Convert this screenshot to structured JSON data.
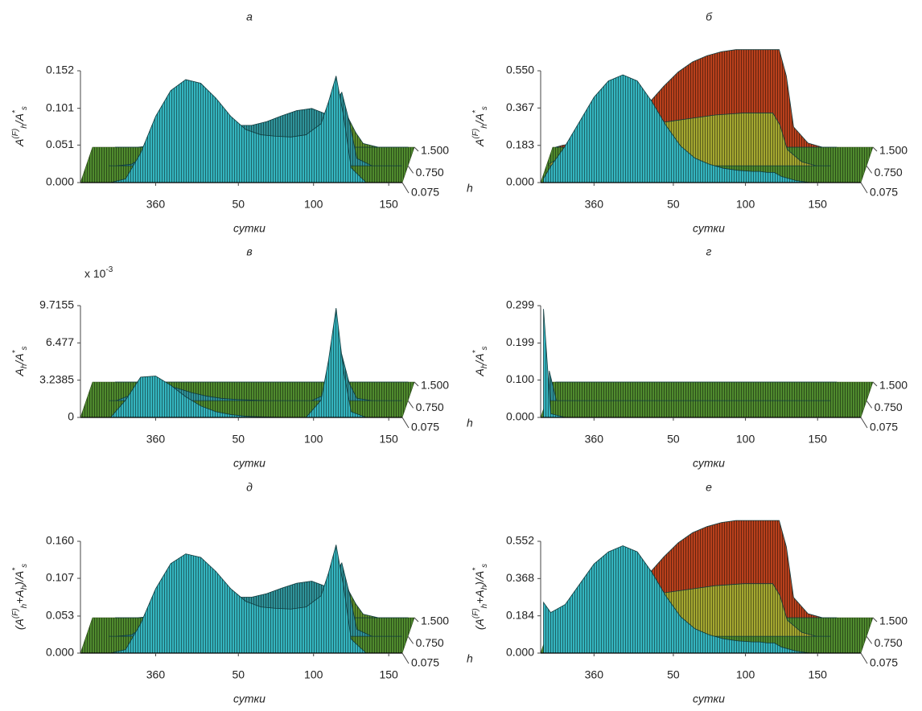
{
  "chart_data": [
    {
      "type": "surface",
      "title": "а",
      "ylabel": [
        {
          "text": "A"
        },
        {
          "text": "(F)",
          "pos": "sup"
        },
        {
          "text": "h",
          "pos": "sub"
        },
        {
          "text": "/A"
        },
        {
          "text": "*",
          "pos": "sup"
        },
        {
          "text": "s",
          "pos": "sub"
        }
      ],
      "xlabel": "сутки",
      "zlabel": "h",
      "x": [
        325,
        330,
        340,
        350,
        360,
        370,
        380,
        390,
        400,
        410,
        420,
        430,
        440,
        450,
        460,
        470,
        475,
        480,
        485,
        490,
        500,
        510,
        520
      ],
      "xlim": [
        310,
        524
      ],
      "xticks": [
        360,
        {
          "value": 415,
          "label": "50"
        },
        {
          "value": 465,
          "label": "100"
        },
        {
          "value": 515,
          "label": "150"
        }
      ],
      "ylim": [
        0,
        0.152
      ],
      "yticks": [
        {
          "value": 0,
          "label": "0.000"
        },
        0.051,
        0.101,
        0.152
      ],
      "zlim": [
        0.075,
        1.5
      ],
      "zticks": [
        0.075,
        {
          "value": 0.75,
          "label": "0.750"
        },
        {
          "value": 1.5,
          "label": "1.500"
        }
      ],
      "floor_color": "#4f8a2e",
      "series": [
        {
          "h": 1.5,
          "color": "#5e8f2c",
          "values": [
            0,
            0,
            0,
            0.002,
            0.005,
            0.008,
            0.01,
            0.012,
            0.013,
            0.014,
            0.016,
            0.02,
            0.025,
            0.03,
            0.032,
            0.03,
            0.035,
            0.04,
            0.02,
            0.005,
            0,
            0,
            0
          ]
        },
        {
          "h": 0.75,
          "color": "#2f939a",
          "values": [
            0,
            0,
            0.002,
            0.015,
            0.035,
            0.05,
            0.058,
            0.06,
            0.058,
            0.055,
            0.055,
            0.06,
            0.068,
            0.075,
            0.078,
            0.07,
            0.085,
            0.1,
            0.06,
            0.01,
            0,
            0,
            0
          ]
        },
        {
          "h": 0.075,
          "color": "#34b4be",
          "values": [
            0,
            0,
            0.005,
            0.04,
            0.09,
            0.125,
            0.14,
            0.135,
            0.115,
            0.09,
            0.072,
            0.065,
            0.063,
            0.062,
            0.065,
            0.08,
            0.11,
            0.145,
            0.09,
            0.02,
            0,
            0,
            0
          ]
        }
      ]
    },
    {
      "type": "surface",
      "title": "б",
      "ylabel": [
        {
          "text": "A"
        },
        {
          "text": "(F)",
          "pos": "sup"
        },
        {
          "text": "h",
          "pos": "sub"
        },
        {
          "text": "/A"
        },
        {
          "text": "*",
          "pos": "sup"
        },
        {
          "text": "s",
          "pos": "sub"
        }
      ],
      "xlabel": "сутки",
      "zlabel": "h",
      "x": [
        325,
        330,
        340,
        350,
        360,
        370,
        380,
        390,
        400,
        410,
        420,
        430,
        440,
        450,
        460,
        470,
        475,
        480,
        485,
        490,
        500,
        510,
        520
      ],
      "xlim": [
        323,
        545
      ],
      "xticks": [
        360,
        {
          "value": 415,
          "label": "50"
        },
        {
          "value": 465,
          "label": "100"
        },
        {
          "value": 515,
          "label": "150"
        }
      ],
      "ylim": [
        0,
        0.55
      ],
      "yticks": [
        {
          "value": 0,
          "label": "0.000"
        },
        0.183,
        0.367,
        {
          "value": 0.55,
          "label": "0.550"
        }
      ],
      "zlim": [
        0.075,
        1.5
      ],
      "zticks": [
        0.075,
        {
          "value": 0.75,
          "label": "0.750"
        },
        {
          "value": 1.5,
          "label": "1.500"
        }
      ],
      "floor_color": "#4f8a2e",
      "series": [
        {
          "h": 1.5,
          "color": "#b8401c",
          "values": [
            0,
            0.01,
            0.02,
            0.04,
            0.07,
            0.1,
            0.15,
            0.22,
            0.3,
            0.37,
            0.42,
            0.45,
            0.47,
            0.48,
            0.48,
            0.48,
            0.48,
            0.48,
            0.35,
            0.1,
            0.02,
            0,
            0
          ]
        },
        {
          "h": 0.75,
          "color": "#a3a630",
          "values": [
            0.01,
            0.03,
            0.06,
            0.1,
            0.14,
            0.17,
            0.19,
            0.2,
            0.21,
            0.22,
            0.23,
            0.24,
            0.25,
            0.255,
            0.26,
            0.26,
            0.26,
            0.26,
            0.2,
            0.08,
            0.02,
            0,
            0
          ]
        },
        {
          "h": 0.075,
          "color": "#34b4be",
          "values": [
            0.02,
            0.08,
            0.18,
            0.3,
            0.42,
            0.5,
            0.53,
            0.5,
            0.4,
            0.28,
            0.18,
            0.12,
            0.09,
            0.07,
            0.06,
            0.055,
            0.055,
            0.05,
            0.05,
            0.03,
            0.01,
            0,
            0
          ]
        }
      ]
    },
    {
      "type": "surface",
      "title": "в",
      "multiplier": {
        "text": "x 10",
        "exponent": "-3"
      },
      "ylabel": [
        {
          "text": "A"
        },
        {
          "text": "h",
          "pos": "sub"
        },
        {
          "text": "/A"
        },
        {
          "text": "*",
          "pos": "sup"
        },
        {
          "text": "s",
          "pos": "sub"
        }
      ],
      "xlabel": "сутки",
      "zlabel": "h",
      "x": [
        325,
        330,
        340,
        350,
        360,
        370,
        380,
        390,
        400,
        410,
        420,
        430,
        440,
        450,
        460,
        470,
        475,
        480,
        485,
        490,
        500,
        510,
        520
      ],
      "xlim": [
        310,
        524
      ],
      "xticks": [
        360,
        {
          "value": 415,
          "label": "50"
        },
        {
          "value": 465,
          "label": "100"
        },
        {
          "value": 515,
          "label": "150"
        }
      ],
      "ylim": [
        0,
        9.7155
      ],
      "yticks": [
        0,
        3.2385,
        6.477,
        9.7155
      ],
      "zlim": [
        0.075,
        1.5
      ],
      "zticks": [
        0.075,
        {
          "value": 0.75,
          "label": "0.750"
        },
        {
          "value": 1.5,
          "label": "1.500"
        }
      ],
      "floor_color": "#4f8a2e",
      "series": [
        {
          "h": 1.5,
          "color": "#5e8f2c",
          "values": [
            0,
            0,
            0,
            0,
            0,
            0,
            0,
            0,
            0,
            0,
            0,
            0,
            0,
            0,
            0,
            0,
            0,
            0,
            0,
            0,
            0,
            0,
            0
          ]
        },
        {
          "h": 0.75,
          "color": "#2f939a",
          "values": [
            0,
            0,
            0.5,
            1.2,
            1.4,
            1.1,
            0.7,
            0.4,
            0.2,
            0.1,
            0.05,
            0,
            0,
            0,
            0,
            0.6,
            2,
            4,
            1.5,
            0.2,
            0,
            0,
            0
          ]
        },
        {
          "h": 0.075,
          "color": "#34b4be",
          "values": [
            0,
            0,
            1.5,
            3.5,
            3.6,
            2.8,
            1.8,
            1,
            0.5,
            0.25,
            0.1,
            0.05,
            0.02,
            0,
            0,
            1.5,
            5,
            9.5,
            4,
            0.5,
            0,
            0,
            0
          ]
        }
      ]
    },
    {
      "type": "surface",
      "title": "г",
      "ylabel": [
        {
          "text": "A"
        },
        {
          "text": "h",
          "pos": "sub"
        },
        {
          "text": "/A"
        },
        {
          "text": "*",
          "pos": "sup"
        },
        {
          "text": "s",
          "pos": "sub"
        }
      ],
      "xlabel": "сутки",
      "zlabel": "h",
      "x": [
        325,
        330,
        340,
        350,
        360,
        370,
        380,
        390,
        400,
        410,
        420,
        430,
        440,
        450,
        460,
        470,
        475,
        480,
        485,
        490,
        500,
        510,
        520
      ],
      "xlim": [
        323,
        545
      ],
      "xticks": [
        360,
        {
          "value": 415,
          "label": "50"
        },
        {
          "value": 465,
          "label": "100"
        },
        {
          "value": 515,
          "label": "150"
        }
      ],
      "ylim": [
        0,
        0.299
      ],
      "yticks": [
        {
          "value": 0,
          "label": "0.000"
        },
        {
          "value": 0.1,
          "label": "0.100"
        },
        0.199,
        0.299
      ],
      "zlim": [
        0.075,
        1.5
      ],
      "zticks": [
        0.075,
        {
          "value": 0.75,
          "label": "0.750"
        },
        {
          "value": 1.5,
          "label": "1.500"
        }
      ],
      "floor_color": "#4f8a2e",
      "series": [
        {
          "h": 1.5,
          "color": "#5e8f2c",
          "values": [
            0,
            0,
            0,
            0,
            0,
            0,
            0,
            0,
            0,
            0,
            0,
            0,
            0,
            0,
            0,
            0,
            0,
            0,
            0,
            0,
            0,
            0,
            0
          ]
        },
        {
          "h": 0.75,
          "color": "#2f939a",
          "values": [
            0.08,
            0,
            0,
            0,
            0,
            0,
            0,
            0,
            0,
            0,
            0,
            0,
            0,
            0,
            0,
            0,
            0,
            0,
            0,
            0,
            0,
            0,
            0
          ]
        },
        {
          "h": 0.075,
          "color": "#34b4be",
          "values": [
            0.29,
            0.01,
            0,
            0,
            0,
            0,
            0,
            0,
            0,
            0,
            0,
            0,
            0,
            0,
            0,
            0,
            0,
            0,
            0,
            0,
            0,
            0,
            0
          ]
        }
      ]
    },
    {
      "type": "surface",
      "title": "д",
      "ylabel": [
        {
          "text": "(A"
        },
        {
          "text": "(F)",
          "pos": "sup"
        },
        {
          "text": "h",
          "pos": "sub"
        },
        {
          "text": "+A"
        },
        {
          "text": "h",
          "pos": "sub"
        },
        {
          "text": ")/A"
        },
        {
          "text": "*",
          "pos": "sup"
        },
        {
          "text": "s",
          "pos": "sub"
        }
      ],
      "xlabel": "сутки",
      "zlabel": "h",
      "x": [
        325,
        330,
        340,
        350,
        360,
        370,
        380,
        390,
        400,
        410,
        420,
        430,
        440,
        450,
        460,
        470,
        475,
        480,
        485,
        490,
        500,
        510,
        520
      ],
      "xlim": [
        310,
        524
      ],
      "xticks": [
        360,
        {
          "value": 415,
          "label": "50"
        },
        {
          "value": 465,
          "label": "100"
        },
        {
          "value": 515,
          "label": "150"
        }
      ],
      "ylim": [
        0,
        0.16
      ],
      "yticks": [
        {
          "value": 0,
          "label": "0.000"
        },
        0.053,
        0.107,
        {
          "value": 0.16,
          "label": "0.160"
        }
      ],
      "zlim": [
        0.075,
        1.5
      ],
      "zticks": [
        0.075,
        {
          "value": 0.75,
          "label": "0.750"
        },
        {
          "value": 1.5,
          "label": "1.500"
        }
      ],
      "floor_color": "#4f8a2e",
      "series": [
        {
          "h": 1.5,
          "color": "#5e8f2c",
          "values": [
            0,
            0,
            0,
            0.002,
            0.005,
            0.008,
            0.01,
            0.012,
            0.013,
            0.014,
            0.016,
            0.02,
            0.025,
            0.03,
            0.032,
            0.03,
            0.035,
            0.04,
            0.02,
            0.005,
            0,
            0,
            0
          ]
        },
        {
          "h": 0.75,
          "color": "#2f939a",
          "values": [
            0,
            0,
            0.002,
            0.016,
            0.036,
            0.051,
            0.059,
            0.061,
            0.059,
            0.056,
            0.056,
            0.061,
            0.069,
            0.076,
            0.079,
            0.071,
            0.088,
            0.105,
            0.062,
            0.01,
            0,
            0,
            0
          ]
        },
        {
          "h": 0.075,
          "color": "#34b4be",
          "values": [
            0,
            0,
            0.005,
            0.042,
            0.092,
            0.128,
            0.142,
            0.137,
            0.117,
            0.092,
            0.074,
            0.066,
            0.064,
            0.063,
            0.066,
            0.082,
            0.115,
            0.155,
            0.095,
            0.02,
            0,
            0,
            0
          ]
        }
      ]
    },
    {
      "type": "surface",
      "title": "е",
      "ylabel": [
        {
          "text": "(A"
        },
        {
          "text": "(F)",
          "pos": "sup"
        },
        {
          "text": "h",
          "pos": "sub"
        },
        {
          "text": "+A"
        },
        {
          "text": "h",
          "pos": "sub"
        },
        {
          "text": ")/A"
        },
        {
          "text": "*",
          "pos": "sup"
        },
        {
          "text": "s",
          "pos": "sub"
        }
      ],
      "xlabel": "сутки",
      "zlabel": "h",
      "x": [
        325,
        330,
        340,
        350,
        360,
        370,
        380,
        390,
        400,
        410,
        420,
        430,
        440,
        450,
        460,
        470,
        475,
        480,
        485,
        490,
        500,
        510,
        520
      ],
      "xlim": [
        323,
        545
      ],
      "xticks": [
        360,
        {
          "value": 415,
          "label": "50"
        },
        {
          "value": 465,
          "label": "100"
        },
        {
          "value": 515,
          "label": "150"
        }
      ],
      "ylim": [
        0,
        0.552
      ],
      "yticks": [
        {
          "value": 0,
          "label": "0.000"
        },
        0.184,
        0.368,
        0.552
      ],
      "zlim": [
        0.075,
        1.5
      ],
      "zticks": [
        0.075,
        {
          "value": 0.75,
          "label": "0.750"
        },
        {
          "value": 1.5,
          "label": "1.500"
        }
      ],
      "floor_color": "#4f8a2e",
      "series": [
        {
          "h": 1.5,
          "color": "#b8401c",
          "values": [
            0,
            0.01,
            0.02,
            0.04,
            0.07,
            0.1,
            0.15,
            0.22,
            0.3,
            0.37,
            0.42,
            0.45,
            0.47,
            0.48,
            0.48,
            0.48,
            0.48,
            0.48,
            0.35,
            0.1,
            0.02,
            0,
            0
          ]
        },
        {
          "h": 0.75,
          "color": "#a3a630",
          "values": [
            0.06,
            0.05,
            0.07,
            0.1,
            0.14,
            0.17,
            0.19,
            0.2,
            0.21,
            0.22,
            0.23,
            0.24,
            0.25,
            0.255,
            0.26,
            0.26,
            0.26,
            0.26,
            0.2,
            0.08,
            0.02,
            0,
            0
          ]
        },
        {
          "h": 0.075,
          "color": "#34b4be",
          "values": [
            0.25,
            0.2,
            0.24,
            0.34,
            0.44,
            0.5,
            0.53,
            0.5,
            0.4,
            0.28,
            0.18,
            0.12,
            0.09,
            0.07,
            0.06,
            0.055,
            0.055,
            0.05,
            0.05,
            0.03,
            0.01,
            0,
            0
          ]
        }
      ]
    }
  ]
}
